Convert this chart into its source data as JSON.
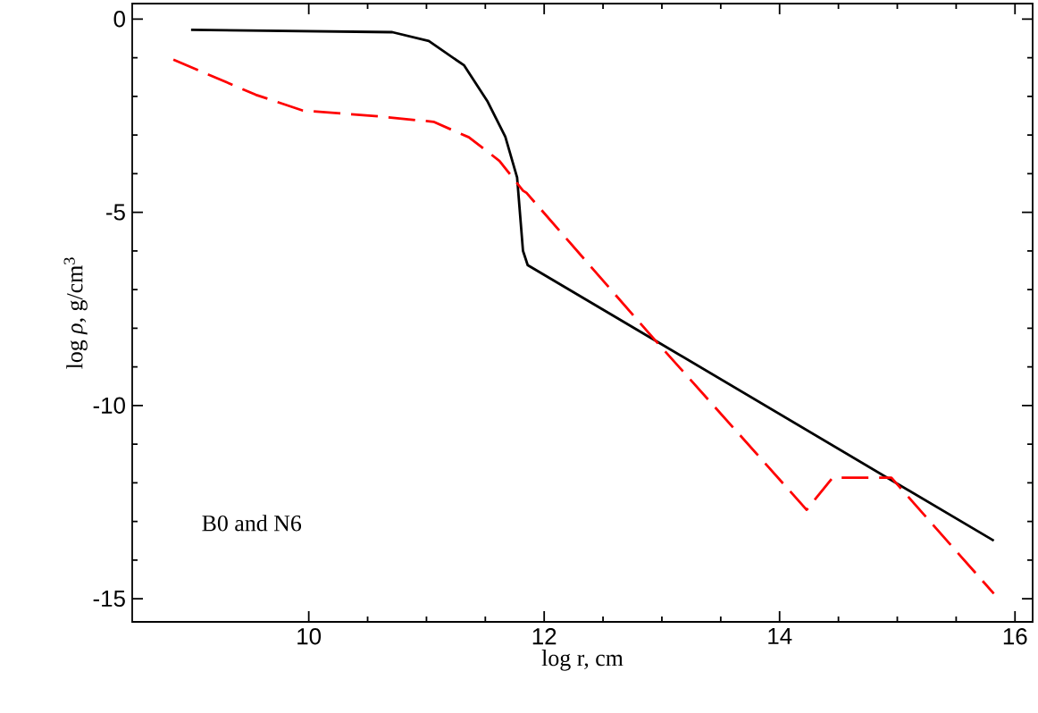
{
  "chart_data": {
    "type": "line",
    "xlabel": "log r, cm",
    "ylabel": "log *ρ*, g/cm$^{3}$",
    "annotations": [
      "B0 and N6"
    ],
    "xlim": [
      8.5,
      16.15
    ],
    "ylim": [
      -15.6,
      0.4
    ],
    "xticks": [
      10,
      12,
      14,
      16
    ],
    "yticks": [
      0,
      -5,
      -10,
      -15
    ],
    "grid": false,
    "series": [
      {
        "color": "#000000",
        "line_style": "solid",
        "x": [
          9.0,
          10.71,
          11.02,
          11.32,
          11.52,
          11.67,
          11.77,
          11.82,
          11.86,
          12.91,
          15.82
        ],
        "values": [
          -0.28,
          -0.34,
          -0.57,
          -1.2,
          -2.14,
          -3.05,
          -4.1,
          -6.0,
          -6.37,
          -8.26,
          -13.5
        ]
      },
      {
        "color": "#ff0000",
        "line_style": "dashed",
        "x": [
          8.85,
          9.55,
          9.95,
          10.56,
          11.06,
          11.36,
          11.62,
          11.82,
          11.85,
          12.91,
          14.23,
          14.45,
          14.95,
          15.82
        ],
        "values": [
          -1.05,
          -1.96,
          -2.37,
          -2.51,
          -2.66,
          -3.06,
          -3.67,
          -4.44,
          -4.5,
          -8.2,
          -12.7,
          -11.87,
          -11.87,
          -14.87
        ]
      }
    ]
  }
}
